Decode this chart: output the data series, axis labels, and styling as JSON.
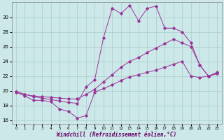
{
  "xlabel": "Windchill (Refroidissement éolien,°C)",
  "background_color": "#cce8e8",
  "grid_color": "#aacccc",
  "line_color": "#993399",
  "xlim": [
    -0.5,
    23.5
  ],
  "ylim": [
    15.5,
    32.0
  ],
  "yticks": [
    16,
    18,
    20,
    22,
    24,
    26,
    28,
    30
  ],
  "xticks": [
    0,
    1,
    2,
    3,
    4,
    5,
    6,
    7,
    8,
    9,
    10,
    11,
    12,
    13,
    14,
    15,
    16,
    17,
    18,
    19,
    20,
    21,
    22,
    23
  ],
  "series1_x": [
    0,
    1,
    2,
    3,
    4,
    5,
    6,
    7,
    8,
    9,
    10,
    11,
    12,
    13,
    14,
    15,
    16,
    17,
    18,
    19,
    20,
    21,
    22,
    23
  ],
  "series1_y": [
    19.8,
    19.3,
    18.7,
    18.7,
    18.5,
    17.5,
    17.2,
    16.3,
    16.6,
    19.8,
    20.3,
    20.8,
    21.4,
    21.9,
    22.2,
    22.5,
    22.8,
    23.2,
    23.6,
    24.0,
    22.0,
    21.8,
    22.0,
    22.3
  ],
  "series2_x": [
    0,
    1,
    2,
    3,
    4,
    5,
    6,
    7,
    8,
    9,
    10,
    11,
    12,
    13,
    14,
    15,
    16,
    17,
    18,
    19,
    20,
    21,
    22,
    23
  ],
  "series2_y": [
    19.9,
    19.5,
    19.3,
    19.2,
    19.1,
    19.0,
    18.9,
    18.9,
    19.5,
    20.2,
    21.2,
    22.2,
    23.2,
    24.0,
    24.5,
    25.2,
    25.8,
    26.4,
    27.0,
    26.5,
    26.0,
    23.5,
    22.0,
    22.4
  ],
  "series3_x": [
    0,
    1,
    2,
    3,
    4,
    5,
    6,
    7,
    8,
    9,
    10,
    11,
    12,
    13,
    14,
    15,
    16,
    17,
    18,
    19,
    20,
    21,
    22,
    23
  ],
  "series3_y": [
    19.9,
    19.5,
    19.2,
    19.0,
    18.8,
    18.6,
    18.4,
    18.3,
    20.5,
    21.5,
    27.2,
    31.2,
    30.5,
    31.6,
    29.5,
    31.2,
    31.5,
    28.5,
    28.5,
    28.0,
    26.5,
    23.5,
    22.0,
    22.5
  ]
}
